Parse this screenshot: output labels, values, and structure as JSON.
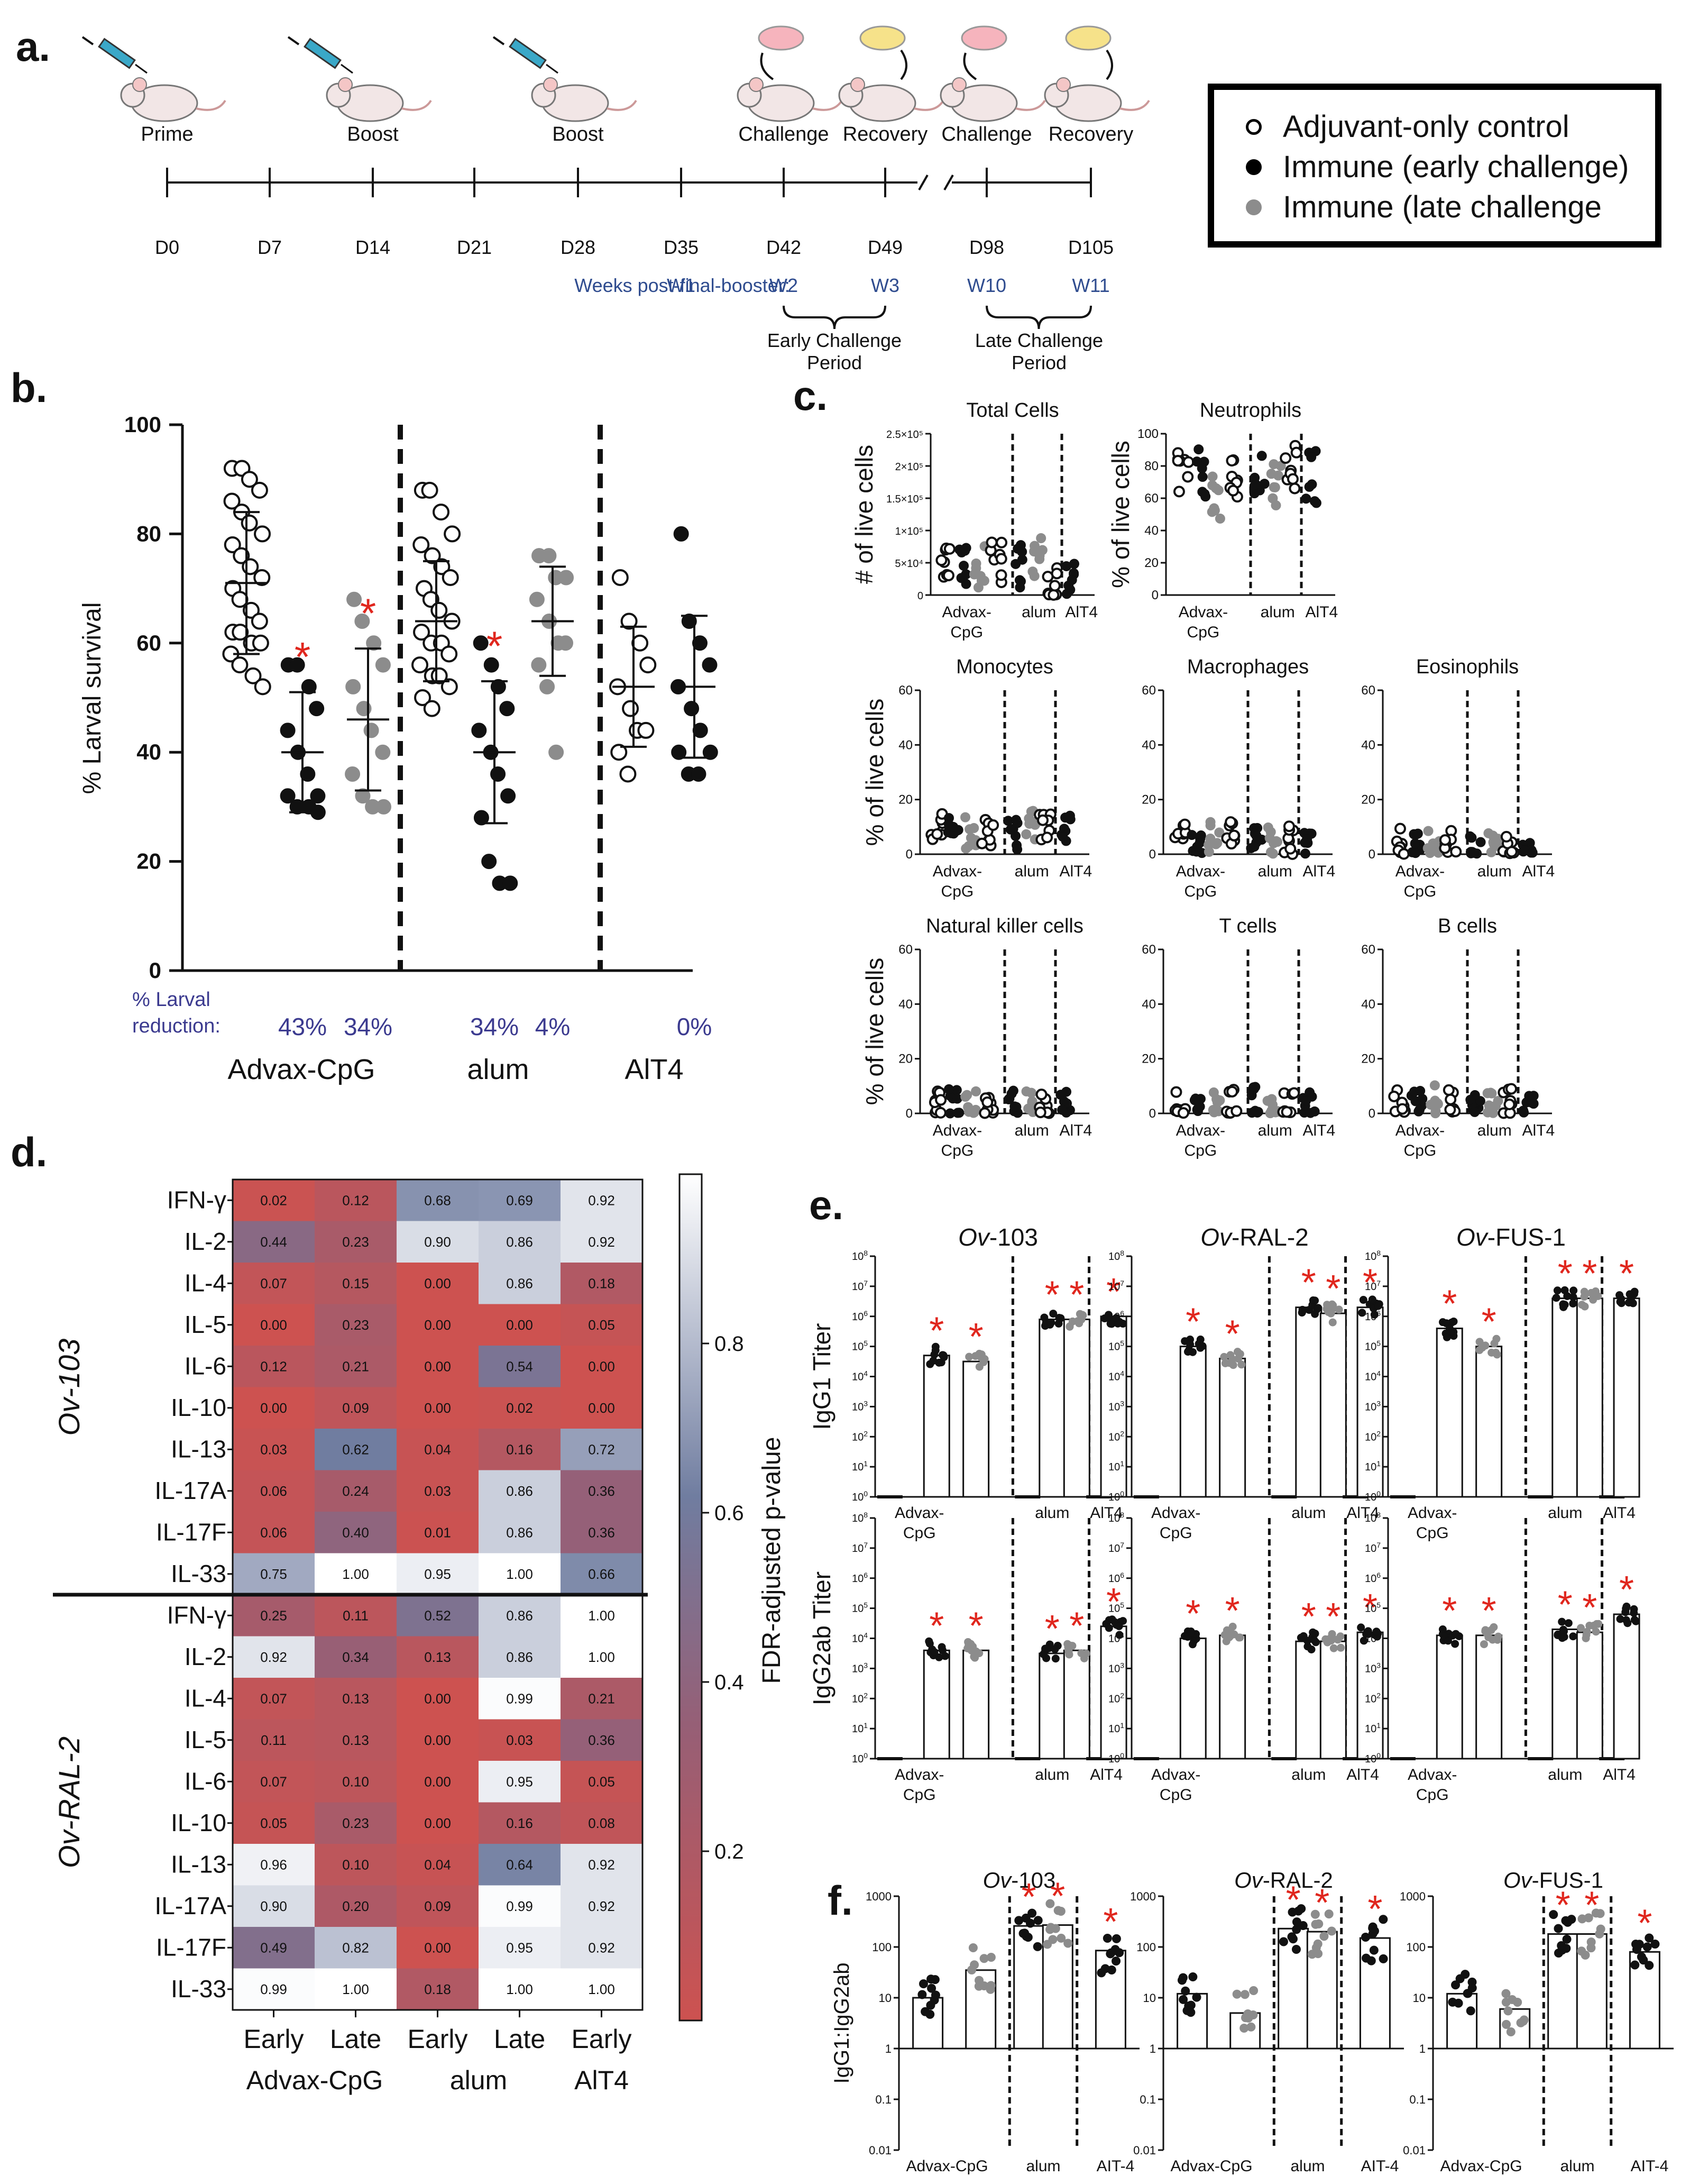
{
  "panel_a": {
    "label": "a.",
    "events": [
      {
        "name": "Prime",
        "day": "D0"
      },
      {
        "name": "Boost",
        "day": "D14"
      },
      {
        "name": "Boost",
        "day": "D28"
      },
      {
        "name": "Challenge",
        "day": "D42"
      },
      {
        "name": "Recovery",
        "day": "D49"
      },
      {
        "name": "Challenge",
        "day": "D98"
      },
      {
        "name": "Recovery",
        "day": "D105"
      }
    ],
    "days": [
      "D0",
      "D7",
      "D14",
      "D21",
      "D28",
      "D35",
      "D42",
      "D49",
      "D98",
      "D105"
    ],
    "weeks_label": "Weeks post-final-booster:",
    "weeks": [
      "W1",
      "W2",
      "W3",
      "W10",
      "W11"
    ],
    "early_period": "Early Challenge",
    "late_period": "Late Challenge",
    "period_word": "Period"
  },
  "legend": {
    "items": [
      {
        "label": "Adjuvant-only control",
        "color": "#ffffff"
      },
      {
        "label": "Immune (early challenge)",
        "color": "#000000"
      },
      {
        "label": "Immune (late challenge",
        "color": "#8c8c8c"
      }
    ]
  },
  "colors": {
    "control": "#ffffff",
    "early": "#111111",
    "late": "#8c8c8c",
    "significance": "#e0261d",
    "reduction_text": "#3b3a8f",
    "weeks_text": "#2f4c8f"
  },
  "panel_b": {
    "label": "b.",
    "chart_data": {
      "type": "scatter",
      "ylabel": "% Larval  survival",
      "ylim": [
        0,
        100
      ],
      "yticks": [
        "0",
        "20",
        "40",
        "60",
        "80",
        "100"
      ],
      "groups": [
        "Advax-CpG",
        "alum",
        "AlT4"
      ],
      "reduction_label_1": "% Larval",
      "reduction_label_2": "reduction:",
      "series": [
        {
          "group": "Advax-CpG",
          "kind": "control",
          "mean": 71,
          "sd": 13,
          "sig": false,
          "values": [
            92,
            92,
            90,
            88,
            86,
            84,
            82,
            80,
            78,
            76,
            74,
            72,
            70,
            68,
            66,
            64,
            62,
            62,
            60,
            60,
            58,
            56,
            54,
            52
          ]
        },
        {
          "group": "Advax-CpG",
          "kind": "early",
          "mean": 40,
          "sd": 11,
          "sig": true,
          "reduction": "43%",
          "values": [
            56,
            56,
            52,
            48,
            44,
            40,
            36,
            32,
            32,
            30,
            30,
            29
          ]
        },
        {
          "group": "Advax-CpG",
          "kind": "late",
          "mean": 46,
          "sd": 13,
          "sig": true,
          "reduction": "34%",
          "values": [
            68,
            64,
            60,
            56,
            52,
            48,
            44,
            40,
            36,
            32,
            30,
            30
          ]
        },
        {
          "group": "alum",
          "kind": "control",
          "mean": 64,
          "sd": 11,
          "sig": false,
          "values": [
            88,
            88,
            84,
            80,
            78,
            76,
            74,
            72,
            70,
            68,
            66,
            64,
            62,
            60,
            60,
            58,
            56,
            54,
            54,
            52,
            50,
            48
          ]
        },
        {
          "group": "alum",
          "kind": "early",
          "mean": 40,
          "sd": 13,
          "sig": true,
          "reduction": "34%",
          "values": [
            60,
            56,
            52,
            48,
            44,
            40,
            36,
            32,
            28,
            20,
            16,
            16
          ]
        },
        {
          "group": "alum",
          "kind": "late",
          "mean": 64,
          "sd": 10,
          "sig": false,
          "reduction": "4%",
          "values": [
            76,
            76,
            72,
            72,
            68,
            64,
            60,
            60,
            56,
            52,
            40
          ]
        },
        {
          "group": "AlT4",
          "kind": "control",
          "mean": 52,
          "sd": 11,
          "sig": false,
          "values": [
            72,
            64,
            60,
            56,
            52,
            48,
            44,
            44,
            40,
            36
          ]
        },
        {
          "group": "AlT4",
          "kind": "early",
          "mean": 52,
          "sd": 13,
          "sig": false,
          "reduction": "0%",
          "values": [
            80,
            64,
            60,
            56,
            52,
            48,
            44,
            40,
            40,
            36,
            36
          ]
        }
      ]
    }
  },
  "panel_c": {
    "label": "c.",
    "groups": [
      "Advax-",
      "CpG",
      "alum",
      "AlT4"
    ],
    "ylabel_count": "# of live cells",
    "ylabel_pct": "% of live cells",
    "total_ticks": [
      "0",
      "5×10⁴",
      "1×10⁵",
      "1.5×10⁵",
      "2×10⁵",
      "2.5×10⁵"
    ],
    "pct_ticks_100": [
      "0",
      "20",
      "40",
      "60",
      "80",
      "100"
    ],
    "pct_ticks_60": [
      "0",
      "20",
      "40",
      "60"
    ],
    "chart_data": [
      {
        "type": "scatter",
        "title": "Total Cells",
        "ylim": [
          0,
          250000
        ]
      },
      {
        "type": "scatter",
        "title": "Neutrophils",
        "ylim": [
          0,
          100
        ],
        "means": [
          72,
          77,
          60,
          72,
          74,
          70,
          80,
          74
        ]
      },
      {
        "type": "scatter",
        "title": "Monocytes",
        "ylim": [
          0,
          60
        ],
        "means": [
          10,
          9,
          8,
          9,
          7,
          10,
          9,
          10
        ]
      },
      {
        "type": "scatter",
        "title": "Macrophages",
        "ylim": [
          0,
          60
        ],
        "means": [
          5,
          5,
          6,
          6,
          8,
          5,
          5,
          4
        ]
      },
      {
        "type": "scatter",
        "title": "Eosinophils",
        "ylim": [
          0,
          60
        ],
        "means": [
          5,
          2,
          4,
          3,
          1,
          5,
          2,
          1
        ]
      },
      {
        "type": "scatter",
        "title": "Natural killer cells",
        "ylim": [
          0,
          60
        ],
        "means": [
          3,
          3,
          4,
          2,
          3,
          4,
          2,
          2
        ]
      },
      {
        "type": "scatter",
        "title": "T cells",
        "ylim": [
          0,
          60
        ],
        "means": [
          2,
          2,
          2,
          3,
          4,
          3,
          2,
          2
        ]
      },
      {
        "type": "scatter",
        "title": "B  cells",
        "ylim": [
          0,
          60
        ],
        "means": [
          3,
          4,
          5,
          3,
          5,
          3,
          3,
          4
        ]
      }
    ]
  },
  "panel_d": {
    "label": "d.",
    "chart_data": {
      "type": "heatmap",
      "colorbar_label": "FDR-adjusted p-value",
      "colorbar_ticks": [
        "0.8",
        "0.6",
        "0.4",
        "0.2"
      ],
      "columns": [
        "Early",
        "Late",
        "Early",
        "Late",
        "Early"
      ],
      "column_groups": [
        "Advax-CpG",
        "alum",
        "AlT4"
      ],
      "row_groups": [
        "Ov-103",
        "Ov-RAL-2"
      ],
      "blocks": [
        {
          "antigen": "Ov-103",
          "rows": [
            {
              "name": "IFN-γ",
              "values": [
                "0.02",
                "0.12",
                "0.68",
                "0.69",
                "0.92"
              ]
            },
            {
              "name": "IL-2",
              "values": [
                "0.44",
                "0.23",
                "0.90",
                "0.86",
                "0.92"
              ]
            },
            {
              "name": "IL-4",
              "values": [
                "0.07",
                "0.15",
                "0.00",
                "0.86",
                "0.18"
              ]
            },
            {
              "name": "IL-5",
              "values": [
                "0.00",
                "0.23",
                "0.00",
                "0.00",
                "0.05"
              ]
            },
            {
              "name": "IL-6",
              "values": [
                "0.12",
                "0.21",
                "0.00",
                "0.54",
                "0.00"
              ]
            },
            {
              "name": "IL-10",
              "values": [
                "0.00",
                "0.09",
                "0.00",
                "0.02",
                "0.00"
              ]
            },
            {
              "name": "IL-13",
              "values": [
                "0.03",
                "0.62",
                "0.04",
                "0.16",
                "0.72"
              ]
            },
            {
              "name": "IL-17A",
              "values": [
                "0.06",
                "0.24",
                "0.03",
                "0.86",
                "0.36"
              ]
            },
            {
              "name": "IL-17F",
              "values": [
                "0.06",
                "0.40",
                "0.01",
                "0.86",
                "0.36"
              ]
            },
            {
              "name": "IL-33",
              "values": [
                "0.75",
                "1.00",
                "0.95",
                "1.00",
                "0.66"
              ]
            }
          ]
        },
        {
          "antigen": "Ov-RAL-2",
          "rows": [
            {
              "name": "IFN-γ",
              "values": [
                "0.25",
                "0.11",
                "0.52",
                "0.86",
                "1.00"
              ]
            },
            {
              "name": "IL-2",
              "values": [
                "0.92",
                "0.34",
                "0.13",
                "0.86",
                "1.00"
              ]
            },
            {
              "name": "IL-4",
              "values": [
                "0.07",
                "0.13",
                "0.00",
                "0.99",
                "0.21"
              ]
            },
            {
              "name": "IL-5",
              "values": [
                "0.11",
                "0.13",
                "0.00",
                "0.03",
                "0.36"
              ]
            },
            {
              "name": "IL-6",
              "values": [
                "0.07",
                "0.10",
                "0.00",
                "0.95",
                "0.05"
              ]
            },
            {
              "name": "IL-10",
              "values": [
                "0.05",
                "0.23",
                "0.00",
                "0.16",
                "0.08"
              ]
            },
            {
              "name": "IL-13",
              "values": [
                "0.96",
                "0.10",
                "0.04",
                "0.64",
                "0.92"
              ]
            },
            {
              "name": "IL-17A",
              "values": [
                "0.90",
                "0.20",
                "0.09",
                "0.99",
                "0.92"
              ]
            },
            {
              "name": "IL-17F",
              "values": [
                "0.49",
                "0.82",
                "0.00",
                "0.95",
                "0.92"
              ]
            },
            {
              "name": "IL-33",
              "values": [
                "0.99",
                "1.00",
                "0.18",
                "1.00",
                "1.00"
              ]
            }
          ]
        }
      ]
    }
  },
  "panel_e": {
    "label": "e.",
    "ov_prefix": "Ov",
    "antigen_suffixes": [
      "-103",
      "-RAL-2",
      "-FUS-1"
    ],
    "ylabels": [
      "IgG1  Titer",
      "IgG2ab  Titer"
    ],
    "groups": [
      "Advax-",
      "CpG",
      "alum",
      "AlT4"
    ],
    "chart_data": [
      {
        "type": "bar",
        "antigen": "Ov-103",
        "isotype": "IgG1",
        "log10_values": [
          0,
          4.7,
          4.5,
          0,
          5.9,
          5.9,
          0,
          6.0
        ],
        "sig": [
          false,
          true,
          true,
          false,
          true,
          true,
          false,
          true
        ]
      },
      {
        "type": "bar",
        "antigen": "Ov-RAL-2",
        "isotype": "IgG1",
        "log10_values": [
          0,
          5.0,
          4.6,
          0,
          6.3,
          6.1,
          0,
          6.3
        ],
        "sig": [
          false,
          true,
          true,
          false,
          true,
          true,
          false,
          true
        ]
      },
      {
        "type": "bar",
        "antigen": "Ov-FUS-1",
        "isotype": "IgG1",
        "log10_values": [
          0,
          5.6,
          5.0,
          0,
          6.6,
          6.6,
          0,
          6.6
        ],
        "sig": [
          false,
          true,
          true,
          false,
          true,
          true,
          false,
          true
        ]
      },
      {
        "type": "bar",
        "antigen": "Ov-103",
        "isotype": "IgG2ab",
        "log10_values": [
          0,
          3.6,
          3.6,
          0,
          3.5,
          3.6,
          0,
          4.4
        ],
        "sig": [
          false,
          true,
          true,
          false,
          true,
          true,
          false,
          true
        ]
      },
      {
        "type": "bar",
        "antigen": "Ov-RAL-2",
        "isotype": "IgG2ab",
        "log10_values": [
          0,
          4.0,
          4.1,
          0,
          3.9,
          3.9,
          0,
          4.2
        ],
        "sig": [
          false,
          true,
          true,
          false,
          true,
          true,
          false,
          true
        ]
      },
      {
        "type": "bar",
        "antigen": "Ov-FUS-1",
        "isotype": "IgG2ab",
        "log10_values": [
          0,
          4.1,
          4.1,
          0,
          4.3,
          4.2,
          0,
          4.8
        ],
        "sig": [
          false,
          true,
          true,
          false,
          true,
          true,
          false,
          true
        ]
      }
    ],
    "ytick_base": "10"
  },
  "panel_f": {
    "label": "f.",
    "ylabel": "IgG1:IgG2ab",
    "yticks": [
      "1000",
      "100",
      "10",
      "1",
      "0.1",
      "0.01"
    ],
    "groups": [
      "Advax-CpG",
      "alum",
      "AIT-4"
    ],
    "chart_data": [
      {
        "type": "bar",
        "antigen": "Ov-103",
        "values": [
          10,
          35,
          260,
          270,
          85
        ],
        "sig": [
          false,
          false,
          true,
          true,
          true
        ]
      },
      {
        "type": "bar",
        "antigen": "Ov-RAL-2",
        "values": [
          12,
          5,
          230,
          200,
          150
        ],
        "sig": [
          false,
          false,
          true,
          true,
          true
        ]
      },
      {
        "type": "bar",
        "antigen": "Ov-FUS-1",
        "values": [
          12,
          6,
          180,
          180,
          80
        ],
        "sig": [
          false,
          false,
          true,
          true,
          true
        ]
      }
    ]
  }
}
